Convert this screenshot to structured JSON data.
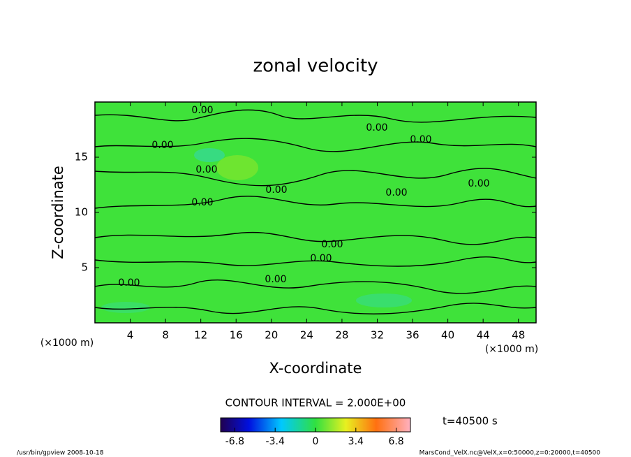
{
  "chart_data": {
    "type": "contour",
    "title": "zonal velocity",
    "x_label": "X-coordinate",
    "y_label": "Z-coordinate",
    "axis_unit": "(×1000 m)",
    "xlim": [
      0,
      50
    ],
    "xticks": [
      4,
      8,
      12,
      16,
      20,
      24,
      28,
      32,
      36,
      40,
      44,
      48
    ],
    "ylim": [
      0,
      20
    ],
    "yticks": [
      5,
      10,
      15
    ],
    "contour_labels": [
      "0.00",
      "0.00",
      "0.00",
      "0.00",
      "0.00",
      "0.00",
      "0.00",
      "0.00",
      "0.00",
      "0.00",
      "0.00",
      "0.00",
      "0.00"
    ],
    "contour_interval": "CONTOUR INTERVAL = 2.000E+00",
    "colorbar": {
      "clim": [
        -8,
        8
      ],
      "ticks": [
        -6.8,
        -3.4,
        0,
        3.4,
        6.8
      ]
    },
    "time_label": "t=40500 s",
    "footer_left": "/usr/bin/gpview  2008-10-18",
    "footer_right": "MarsCond_VelX.nc@VelX,x=0:50000,z=0:20000,t=40500"
  }
}
